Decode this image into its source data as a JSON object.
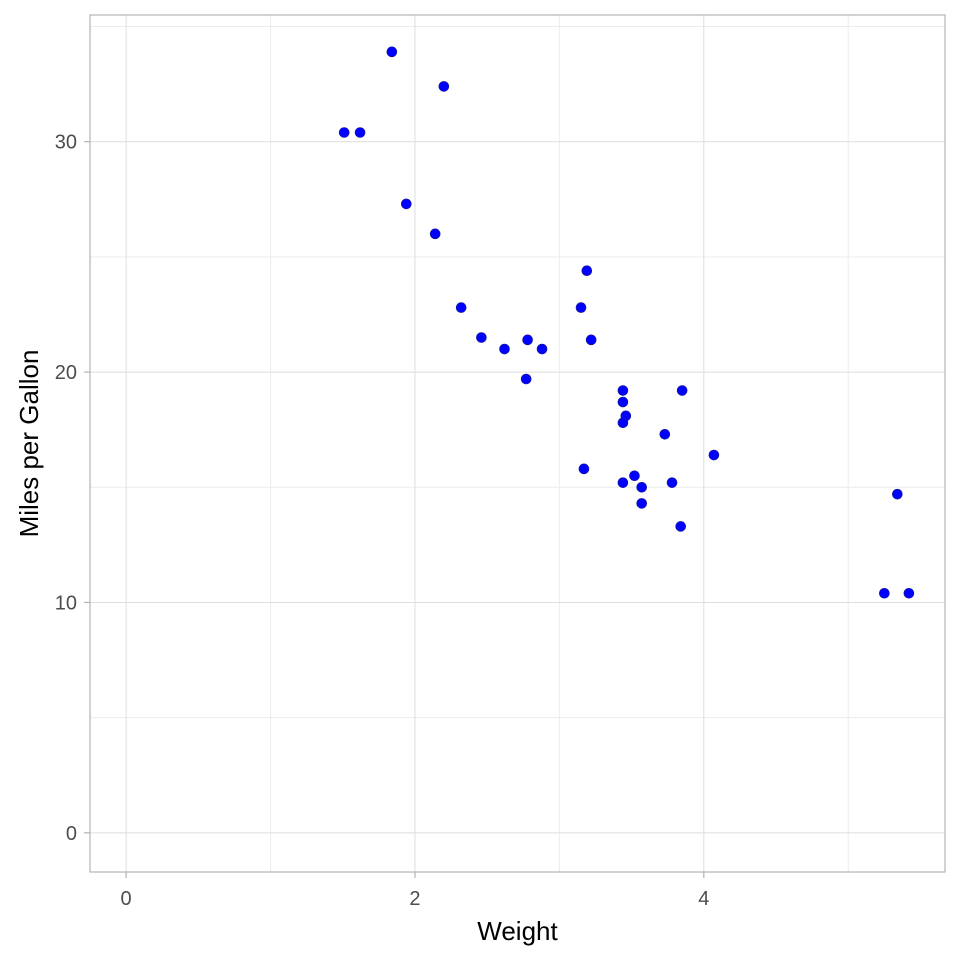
{
  "chart_data": {
    "type": "scatter",
    "title": "",
    "xlabel": "Weight",
    "ylabel": "Miles per Gallon",
    "xlim": [
      -0.25,
      5.67
    ],
    "ylim": [
      -1.7,
      35.5
    ],
    "x_major_ticks": [
      0,
      2,
      4
    ],
    "x_minor_ticks": [
      1,
      3,
      5
    ],
    "y_major_ticks": [
      0,
      10,
      20,
      30
    ],
    "y_minor_ticks": [
      5,
      15,
      25,
      35
    ],
    "x_tick_labels": [
      "0",
      "2",
      "4"
    ],
    "y_tick_labels": [
      "0",
      "10",
      "20",
      "30"
    ],
    "grid": true,
    "legend": "none",
    "point_color": "#0000ff",
    "points": [
      {
        "x": 1.84,
        "y": 33.9
      },
      {
        "x": 2.2,
        "y": 32.4
      },
      {
        "x": 1.51,
        "y": 30.4
      },
      {
        "x": 1.62,
        "y": 30.4
      },
      {
        "x": 1.94,
        "y": 27.3
      },
      {
        "x": 2.14,
        "y": 26.0
      },
      {
        "x": 3.19,
        "y": 24.4
      },
      {
        "x": 2.32,
        "y": 22.8
      },
      {
        "x": 3.15,
        "y": 22.8
      },
      {
        "x": 2.46,
        "y": 21.5
      },
      {
        "x": 2.78,
        "y": 21.4
      },
      {
        "x": 3.22,
        "y": 21.4
      },
      {
        "x": 2.62,
        "y": 21.0
      },
      {
        "x": 2.88,
        "y": 21.0
      },
      {
        "x": 2.77,
        "y": 19.7
      },
      {
        "x": 3.44,
        "y": 19.2
      },
      {
        "x": 3.85,
        "y": 19.2
      },
      {
        "x": 3.44,
        "y": 18.7
      },
      {
        "x": 3.46,
        "y": 18.1
      },
      {
        "x": 3.44,
        "y": 17.8
      },
      {
        "x": 3.73,
        "y": 17.3
      },
      {
        "x": 4.07,
        "y": 16.4
      },
      {
        "x": 3.17,
        "y": 15.8
      },
      {
        "x": 3.52,
        "y": 15.5
      },
      {
        "x": 3.44,
        "y": 15.2
      },
      {
        "x": 3.78,
        "y": 15.2
      },
      {
        "x": 3.57,
        "y": 15.0
      },
      {
        "x": 5.34,
        "y": 14.7
      },
      {
        "x": 3.57,
        "y": 14.3
      },
      {
        "x": 3.84,
        "y": 13.3
      },
      {
        "x": 5.25,
        "y": 10.4
      },
      {
        "x": 5.42,
        "y": 10.4
      }
    ]
  }
}
